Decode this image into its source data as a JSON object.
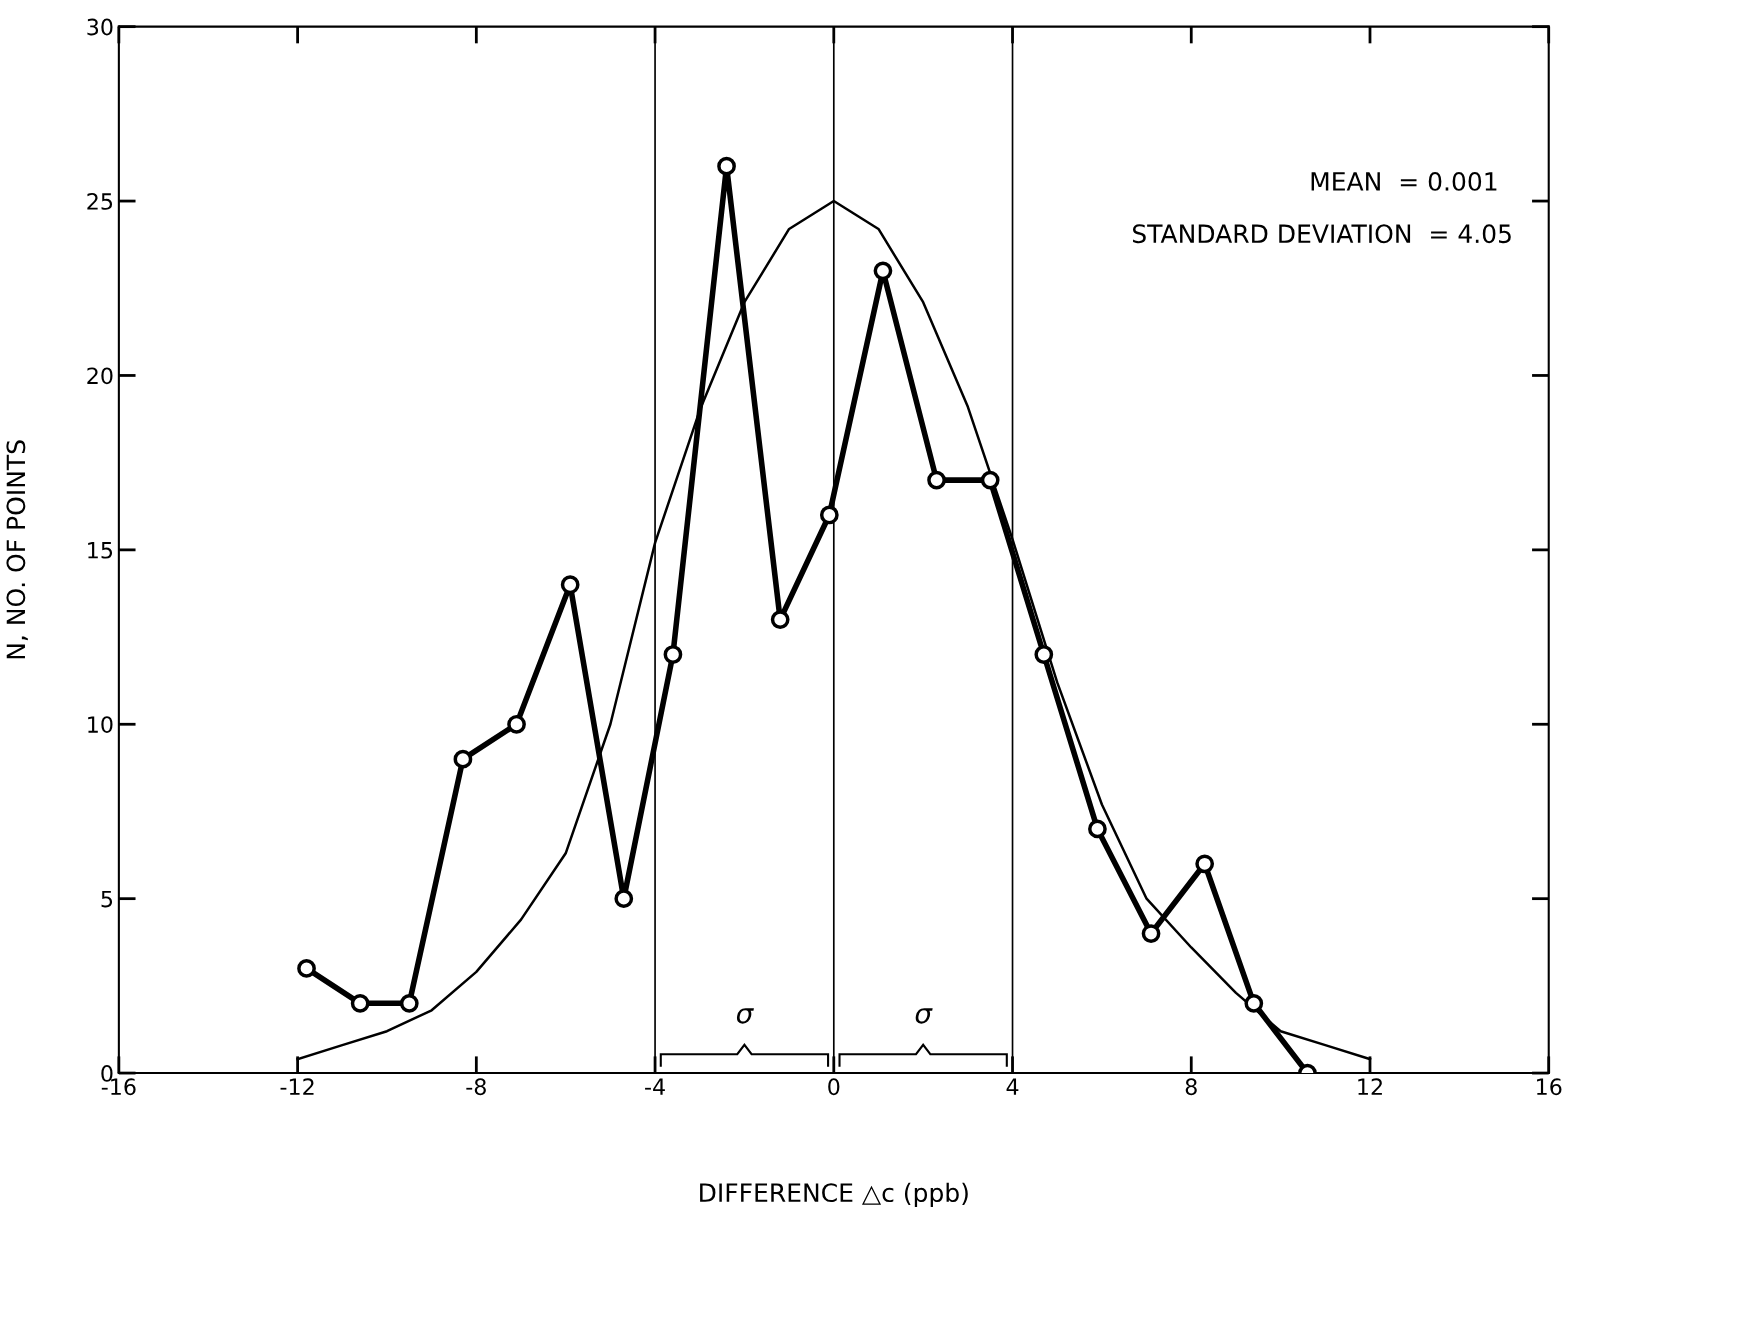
{
  "chart_data": {
    "type": "line",
    "xlabel": "DIFFERENCE △c (ppb)",
    "ylabel": "N, NO. OF POINTS",
    "xlim": [
      -16,
      16
    ],
    "xticks": [
      -16,
      -12,
      -8,
      -4,
      0,
      4,
      8,
      12,
      16
    ],
    "ylim": [
      0,
      30
    ],
    "yticks": [
      0,
      5,
      10,
      15,
      20,
      25,
      30
    ],
    "grid": false,
    "legend": false,
    "series": [
      {
        "color": "#000000",
        "marker": "none",
        "line_style": "solid",
        "x": [
          -12,
          -11,
          -10,
          -9,
          -8,
          -7,
          -6,
          -5,
          -4,
          -3,
          -2,
          -1,
          0,
          1,
          2,
          3,
          4,
          5,
          6,
          7,
          8,
          9,
          10,
          11,
          12
        ],
        "values": [
          0.4,
          0.8,
          1.2,
          1.8,
          2.9,
          4.4,
          6.3,
          10,
          15.2,
          19,
          22.1,
          24.2,
          25,
          24.2,
          22.1,
          19.1,
          15.3,
          11.2,
          7.7,
          5,
          3.6,
          2.3,
          1.2,
          0.8,
          0.4
        ]
      },
      {
        "color": "#000000",
        "marker": "circle",
        "line_style": "solid",
        "x": [
          -11.8,
          -10.6,
          -9.5,
          -8.3,
          -7.1,
          -5.9,
          -4.7,
          -3.6,
          -2.4,
          -1.2,
          -0.1,
          1.1,
          2.3,
          3.5,
          4.7,
          5.9,
          7.1,
          8.3,
          9.4,
          10.6
        ],
        "values": [
          3,
          2,
          2,
          9,
          10,
          14,
          5,
          12,
          26,
          13,
          16,
          23,
          17,
          17,
          12,
          7,
          4,
          6,
          2,
          0
        ]
      }
    ],
    "ref_lines": [
      {
        "axis": "x",
        "value": -4,
        "color": "#000000"
      },
      {
        "axis": "x",
        "value": 0,
        "color": "#000000"
      },
      {
        "axis": "x",
        "value": 4,
        "color": "#000000"
      }
    ],
    "annotations": [
      "σ",
      "σ",
      "MEAN  = 0.001",
      "STANDARD DEVIATION  = 4.05"
    ]
  }
}
